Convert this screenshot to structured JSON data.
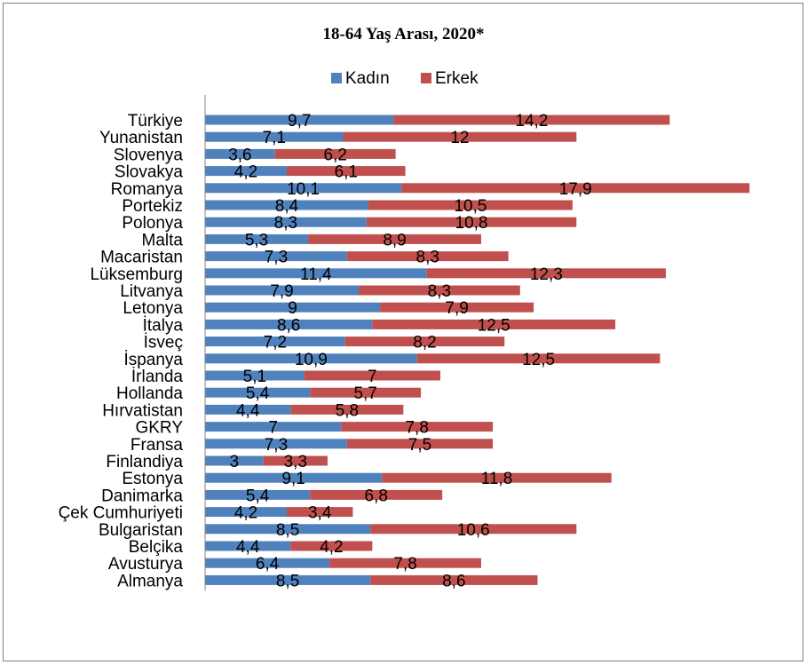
{
  "colors": {
    "kadin": "#4F81BD",
    "erkek": "#C0504D",
    "axis": "#868686"
  },
  "chart_data": {
    "type": "bar",
    "orientation": "horizontal",
    "stacked": true,
    "title": "18-64 Yaş Arası, 2020*",
    "legend_position": "top",
    "grid": false,
    "categories": [
      "Türkiye",
      "Yunanistan",
      "Slovenya",
      "Slovakya",
      "Romanya",
      "Portekiz",
      "Polonya",
      "Malta",
      "Macaristan",
      "Lüksemburg",
      "Litvanya",
      "Letonya",
      "İtalya",
      "İsveç",
      "İspanya",
      "İrlanda",
      "Hollanda",
      "Hırvatistan",
      "GKRY",
      "Fransa",
      "Finlandiya",
      "Estonya",
      "Danimarka",
      "Çek Cumhuriyeti",
      "Bulgaristan",
      "Belçika",
      "Avusturya",
      "Almanya"
    ],
    "series": [
      {
        "name": "Kadın",
        "values": [
          9.7,
          7.1,
          3.6,
          4.2,
          10.1,
          8.4,
          8.3,
          5.3,
          7.3,
          11.4,
          7.9,
          9,
          8.6,
          7.2,
          10.9,
          5.1,
          5.4,
          4.4,
          7,
          7.3,
          3,
          9.1,
          5.4,
          4.2,
          8.5,
          4.4,
          6.4,
          8.5
        ],
        "labels": [
          "9,7",
          "7,1",
          "3,6",
          "4,2",
          "10,1",
          "8,4",
          "8,3",
          "5,3",
          "7,3",
          "11,4",
          "7,9",
          "9",
          "8,6",
          "7,2",
          "10,9",
          "5,1",
          "5,4",
          "4,4",
          "7",
          "7,3",
          "3",
          "9,1",
          "5,4",
          "4,2",
          "8,5",
          "4,4",
          "6,4",
          "8,5"
        ]
      },
      {
        "name": "Erkek",
        "values": [
          14.2,
          12,
          6.2,
          6.1,
          17.9,
          10.5,
          10.8,
          8.9,
          8.3,
          12.3,
          8.3,
          7.9,
          12.5,
          8.2,
          12.5,
          7,
          5.7,
          5.8,
          7.8,
          7.5,
          3.3,
          11.8,
          6.8,
          3.4,
          10.6,
          4.2,
          7.8,
          8.6
        ],
        "labels": [
          "14,2",
          "12",
          "6,2",
          "6,1",
          "17,9",
          "10,5",
          "10,8",
          "8,9",
          "8,3",
          "12,3",
          "8,3",
          "7,9",
          "12,5",
          "8,2",
          "12,5",
          "7",
          "5,7",
          "5,8",
          "7,8",
          "7,5",
          "3,3",
          "11,8",
          "6,8",
          "3,4",
          "10,6",
          "4,2",
          "7,8",
          "8,6"
        ]
      }
    ]
  }
}
